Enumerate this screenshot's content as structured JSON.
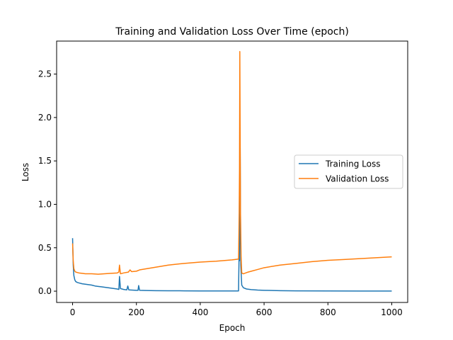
{
  "chart_data": {
    "type": "line",
    "title": "Training and Validation Loss Over Time (epoch)",
    "xlabel": "Epoch",
    "ylabel": "Loss",
    "xlim": [
      -50,
      1050
    ],
    "ylim": [
      -0.13,
      2.88
    ],
    "xticks": [
      0,
      200,
      400,
      600,
      800,
      1000
    ],
    "yticks": [
      0.0,
      0.5,
      1.0,
      1.5,
      2.0,
      2.5
    ],
    "legend_position": "center-right",
    "grid": false,
    "series": [
      {
        "name": "Training Loss",
        "color": "#1f77b4",
        "points": [
          [
            0,
            0.61
          ],
          [
            2,
            0.3
          ],
          [
            4,
            0.18
          ],
          [
            7,
            0.13
          ],
          [
            10,
            0.11
          ],
          [
            15,
            0.1
          ],
          [
            20,
            0.095
          ],
          [
            30,
            0.085
          ],
          [
            40,
            0.08
          ],
          [
            50,
            0.075
          ],
          [
            60,
            0.07
          ],
          [
            70,
            0.06
          ],
          [
            80,
            0.055
          ],
          [
            90,
            0.05
          ],
          [
            100,
            0.045
          ],
          [
            110,
            0.04
          ],
          [
            120,
            0.035
          ],
          [
            130,
            0.03
          ],
          [
            140,
            0.025
          ],
          [
            145,
            0.02
          ],
          [
            147,
            0.17
          ],
          [
            150,
            0.03
          ],
          [
            160,
            0.02
          ],
          [
            170,
            0.015
          ],
          [
            173,
            0.06
          ],
          [
            176,
            0.015
          ],
          [
            190,
            0.012
          ],
          [
            200,
            0.01
          ],
          [
            205,
            0.01
          ],
          [
            207,
            0.065
          ],
          [
            210,
            0.01
          ],
          [
            230,
            0.008
          ],
          [
            260,
            0.006
          ],
          [
            300,
            0.005
          ],
          [
            350,
            0.004
          ],
          [
            400,
            0.003
          ],
          [
            450,
            0.003
          ],
          [
            500,
            0.003
          ],
          [
            520,
            0.003
          ],
          [
            522,
            0.5
          ],
          [
            523,
            0.35
          ],
          [
            525,
            1.65
          ],
          [
            527,
            0.3
          ],
          [
            530,
            0.07
          ],
          [
            535,
            0.04
          ],
          [
            545,
            0.025
          ],
          [
            560,
            0.018
          ],
          [
            580,
            0.013
          ],
          [
            600,
            0.01
          ],
          [
            650,
            0.006
          ],
          [
            700,
            0.004
          ],
          [
            800,
            0.003
          ],
          [
            900,
            0.002
          ],
          [
            1000,
            0.002
          ]
        ]
      },
      {
        "name": "Validation Loss",
        "color": "#ff7f0e",
        "points": [
          [
            0,
            0.55
          ],
          [
            2,
            0.35
          ],
          [
            4,
            0.26
          ],
          [
            7,
            0.23
          ],
          [
            10,
            0.22
          ],
          [
            20,
            0.21
          ],
          [
            30,
            0.205
          ],
          [
            40,
            0.2
          ],
          [
            60,
            0.2
          ],
          [
            80,
            0.195
          ],
          [
            100,
            0.2
          ],
          [
            120,
            0.205
          ],
          [
            140,
            0.21
          ],
          [
            145,
            0.22
          ],
          [
            147,
            0.3
          ],
          [
            150,
            0.2
          ],
          [
            160,
            0.21
          ],
          [
            175,
            0.22
          ],
          [
            180,
            0.245
          ],
          [
            185,
            0.225
          ],
          [
            200,
            0.23
          ],
          [
            210,
            0.245
          ],
          [
            250,
            0.27
          ],
          [
            300,
            0.3
          ],
          [
            350,
            0.32
          ],
          [
            400,
            0.335
          ],
          [
            450,
            0.345
          ],
          [
            500,
            0.36
          ],
          [
            520,
            0.37
          ],
          [
            522,
            0.9
          ],
          [
            523,
            1.4
          ],
          [
            524,
            2.76
          ],
          [
            526,
            0.9
          ],
          [
            528,
            0.4
          ],
          [
            530,
            0.21
          ],
          [
            535,
            0.2
          ],
          [
            550,
            0.22
          ],
          [
            580,
            0.25
          ],
          [
            600,
            0.27
          ],
          [
            650,
            0.3
          ],
          [
            700,
            0.32
          ],
          [
            750,
            0.34
          ],
          [
            800,
            0.355
          ],
          [
            850,
            0.365
          ],
          [
            900,
            0.375
          ],
          [
            950,
            0.385
          ],
          [
            1000,
            0.395
          ]
        ]
      }
    ]
  }
}
